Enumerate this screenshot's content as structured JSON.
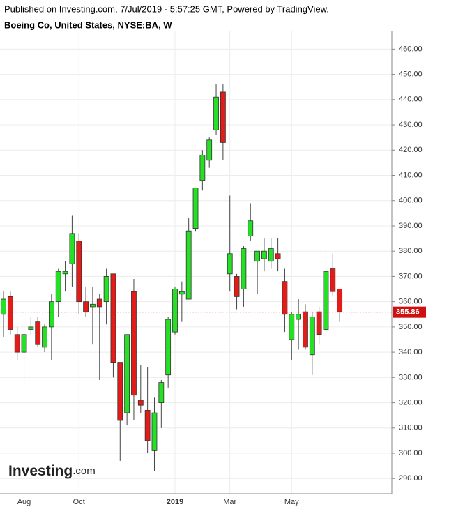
{
  "header": {
    "published": "Published on Investing.com, 7/Jul/2019 - 5:57:25 GMT, Powered by TradingView.",
    "instrument": "Boeing Co, United States, NYSE:BA, W"
  },
  "logo": {
    "name": "Investing",
    "suffix": ".com"
  },
  "chart_data": {
    "type": "candlestick",
    "categories": [
      null,
      null,
      null,
      "Aug",
      null,
      null,
      null,
      null,
      null,
      null,
      null,
      "Oct",
      null,
      null,
      null,
      null,
      null,
      null,
      null,
      null,
      null,
      null,
      null,
      null,
      null,
      "2019",
      null,
      null,
      null,
      null,
      null,
      null,
      null,
      "Mar",
      null,
      null,
      null,
      null,
      null,
      null,
      null,
      null,
      "May",
      null,
      null,
      null,
      null,
      null,
      null,
      null
    ],
    "open": [
      355,
      362,
      347,
      340,
      349,
      352,
      342,
      350,
      360,
      371,
      375,
      384,
      360,
      358,
      361,
      360,
      371,
      336,
      316,
      364,
      321,
      317,
      301,
      320,
      331,
      348,
      363,
      361,
      389,
      408,
      416,
      428,
      443,
      371,
      370,
      365,
      386,
      376,
      377,
      376,
      379,
      368,
      345,
      353,
      356,
      339,
      356,
      349,
      373,
      365
    ],
    "high": [
      364,
      364,
      350,
      349,
      354,
      354,
      351,
      363,
      373,
      376,
      394,
      387,
      366,
      366,
      363,
      373,
      371,
      336,
      347,
      369,
      335,
      334,
      322,
      329,
      354,
      366,
      368,
      393,
      405,
      420,
      425,
      446,
      446,
      402,
      371,
      382,
      399,
      380,
      385,
      385,
      385,
      373,
      356,
      361,
      359,
      356,
      358,
      380,
      379,
      365
    ],
    "low": [
      346,
      347,
      337,
      328,
      347,
      342,
      340,
      337,
      354,
      364,
      366,
      355,
      354,
      343,
      329,
      351,
      330,
      297,
      311,
      313,
      316,
      300,
      293,
      310,
      326,
      347,
      352,
      361,
      388,
      404,
      413,
      426,
      416,
      364,
      357,
      358,
      384,
      363,
      372,
      373,
      372,
      348,
      337,
      341,
      341,
      331,
      343,
      346,
      362,
      352
    ],
    "close": [
      361,
      349,
      340,
      347,
      350,
      343,
      350,
      360,
      372,
      372,
      387,
      360,
      356,
      359,
      358,
      370,
      336,
      313,
      347,
      323,
      319,
      305,
      316,
      328,
      353,
      365,
      364,
      388,
      405,
      418,
      424,
      441,
      423,
      379,
      362,
      381,
      392,
      380,
      380,
      381,
      377,
      355,
      355,
      355,
      342,
      354,
      347,
      372,
      364,
      356
    ],
    "up_color": "#26e026",
    "down_color": "#e41b17",
    "last_price": 355.86,
    "last_price_color": "#d01010",
    "ylim": [
      284,
      467
    ],
    "yticks": [
      {
        "value": 290,
        "label": "290.00"
      },
      {
        "value": 300,
        "label": "300.00"
      },
      {
        "value": 310,
        "label": "310.00"
      },
      {
        "value": 320,
        "label": "320.00"
      },
      {
        "value": 330,
        "label": "330.00"
      },
      {
        "value": 340,
        "label": "340.00"
      },
      {
        "value": 350,
        "label": "350.00"
      },
      {
        "value": 360,
        "label": "360.00"
      },
      {
        "value": 370,
        "label": "370.00"
      },
      {
        "value": 380,
        "label": "380.00"
      },
      {
        "value": 390,
        "label": "390.00"
      },
      {
        "value": 400,
        "label": "400.00"
      },
      {
        "value": 410,
        "label": "410.00"
      },
      {
        "value": 420,
        "label": "420.00"
      },
      {
        "value": 430,
        "label": "430.00"
      },
      {
        "value": 440,
        "label": "440.00"
      },
      {
        "value": 450,
        "label": "450.00"
      },
      {
        "value": 460,
        "label": "460.00"
      }
    ],
    "grid": true
  }
}
